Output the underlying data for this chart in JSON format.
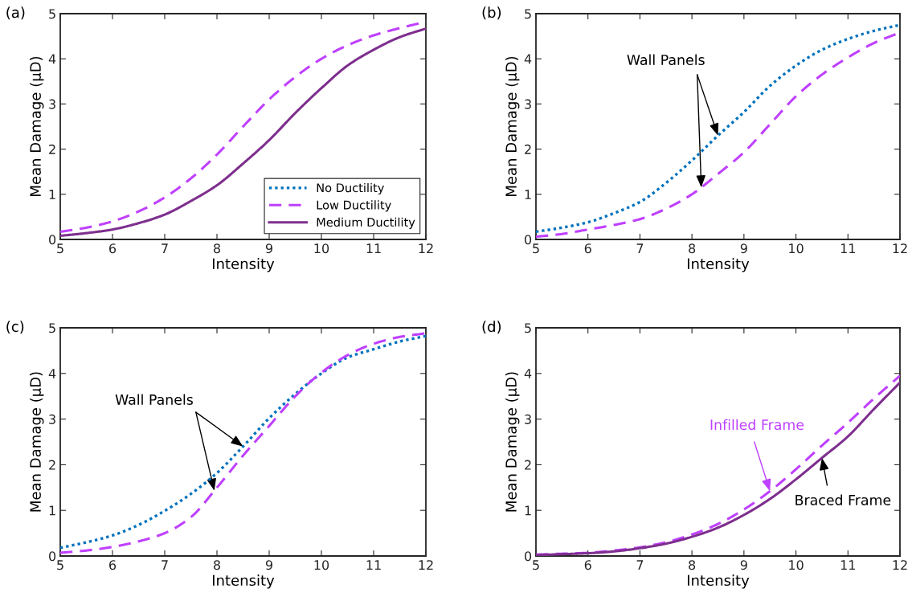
{
  "chart_data": [
    {
      "type": "line",
      "title": "(a)",
      "xlabel": "Intensity",
      "ylabel": "Mean Damage (μD)",
      "x": [
        5,
        5.5,
        6,
        6.5,
        7,
        7.5,
        8,
        8.5,
        9,
        9.5,
        10,
        10.5,
        11,
        11.5,
        12
      ],
      "xlim": [
        5,
        12
      ],
      "xticks": [
        5,
        6,
        7,
        8,
        9,
        10,
        11,
        12
      ],
      "ylim": [
        0,
        5
      ],
      "yticks": [
        0,
        1,
        2,
        3,
        4,
        5
      ],
      "grid": false,
      "legend": "bottom right",
      "series": [
        {
          "name": "No Ductility",
          "color": "#0072bd",
          "line_style": "dotted",
          "values": [
            null,
            null,
            null,
            null,
            null,
            null,
            null,
            null,
            null,
            null,
            null,
            null,
            null,
            null,
            null
          ]
        },
        {
          "name": "Low Ductility",
          "color": "#bf40ff",
          "line_style": "dashed",
          "values": [
            0.17,
            0.26,
            0.4,
            0.62,
            0.93,
            1.35,
            1.88,
            2.5,
            3.1,
            3.6,
            4.0,
            4.3,
            4.52,
            4.68,
            4.82
          ]
        },
        {
          "name": "Medium Ductility",
          "color": "#7e2f8e",
          "line_style": "solid",
          "values": [
            0.08,
            0.14,
            0.22,
            0.36,
            0.55,
            0.85,
            1.2,
            1.68,
            2.2,
            2.8,
            3.35,
            3.85,
            4.2,
            4.48,
            4.67
          ]
        }
      ]
    },
    {
      "type": "line",
      "title": "(b)",
      "xlabel": "Intensity",
      "ylabel": "Mean Damage (μD)",
      "x": [
        5,
        5.5,
        6,
        6.5,
        7,
        7.5,
        8,
        8.5,
        9,
        9.5,
        10,
        10.5,
        11,
        11.5,
        12
      ],
      "xlim": [
        5,
        12
      ],
      "xticks": [
        5,
        6,
        7,
        8,
        9,
        10,
        11,
        12
      ],
      "ylim": [
        0,
        5
      ],
      "yticks": [
        0,
        1,
        2,
        3,
        4,
        5
      ],
      "grid": false,
      "annotations": [
        {
          "text": "Wall Panels",
          "x": 8.5,
          "y": 2.3
        }
      ],
      "series": [
        {
          "color": "#0072bd",
          "line_style": "dotted",
          "values": [
            0.17,
            0.26,
            0.38,
            0.58,
            0.83,
            1.25,
            1.75,
            2.3,
            2.82,
            3.4,
            3.85,
            4.2,
            4.44,
            4.62,
            4.75
          ]
        },
        {
          "color": "#bf40ff",
          "line_style": "dashed",
          "values": [
            0.06,
            0.12,
            0.22,
            0.32,
            0.45,
            0.68,
            1.0,
            1.45,
            1.93,
            2.55,
            3.17,
            3.65,
            4.03,
            4.35,
            4.58
          ]
        }
      ]
    },
    {
      "type": "line",
      "title": "(c)",
      "xlabel": "Intensity",
      "ylabel": "Mean Damage (μD)",
      "x": [
        5,
        5.5,
        6,
        6.5,
        7,
        7.5,
        8,
        8.5,
        9,
        9.5,
        10,
        10.5,
        11,
        11.5,
        12
      ],
      "xlim": [
        5,
        12
      ],
      "xticks": [
        5,
        6,
        7,
        8,
        9,
        10,
        11,
        12
      ],
      "ylim": [
        0,
        5
      ],
      "yticks": [
        0,
        1,
        2,
        3,
        4,
        5
      ],
      "grid": false,
      "annotations": [
        {
          "text": "Wall Panels",
          "x": 8.5,
          "y": 2.4
        }
      ],
      "series": [
        {
          "color": "#0072bd",
          "line_style": "dotted",
          "values": [
            0.18,
            0.3,
            0.45,
            0.68,
            0.99,
            1.36,
            1.82,
            2.4,
            3.02,
            3.55,
            4.0,
            4.35,
            4.53,
            4.7,
            4.82
          ]
        },
        {
          "color": "#bf40ff",
          "line_style": "dashed",
          "values": [
            0.07,
            0.12,
            0.2,
            0.32,
            0.5,
            0.85,
            1.5,
            2.2,
            2.85,
            3.5,
            4.02,
            4.4,
            4.65,
            4.8,
            4.88
          ]
        }
      ]
    },
    {
      "type": "line",
      "title": "(d)",
      "xlabel": "Intensity",
      "ylabel": "Mean Damage (μD)",
      "x": [
        5,
        5.5,
        6,
        6.5,
        7,
        7.5,
        8,
        8.5,
        9,
        9.5,
        10,
        10.5,
        11,
        11.5,
        12
      ],
      "xlim": [
        5,
        12
      ],
      "xticks": [
        5,
        6,
        7,
        8,
        9,
        10,
        11,
        12
      ],
      "ylim": [
        0,
        5
      ],
      "yticks": [
        0,
        1,
        2,
        3,
        4,
        5
      ],
      "grid": false,
      "annotations": [
        {
          "text": "Infilled Frame",
          "x": 9.5,
          "y": 1.42
        },
        {
          "text": "Braced Frame",
          "x": 10.5,
          "y": 2.15
        }
      ],
      "series": [
        {
          "color": "#bf40ff",
          "line_style": "dashed",
          "values": [
            0.03,
            0.05,
            0.07,
            0.12,
            0.19,
            0.3,
            0.47,
            0.7,
            1.02,
            1.42,
            1.9,
            2.42,
            2.92,
            3.45,
            3.95
          ]
        },
        {
          "color": "#7e2f8e",
          "line_style": "solid",
          "values": [
            0.02,
            0.04,
            0.06,
            0.1,
            0.17,
            0.27,
            0.42,
            0.62,
            0.9,
            1.25,
            1.68,
            2.15,
            2.62,
            3.22,
            3.8
          ]
        }
      ]
    }
  ]
}
